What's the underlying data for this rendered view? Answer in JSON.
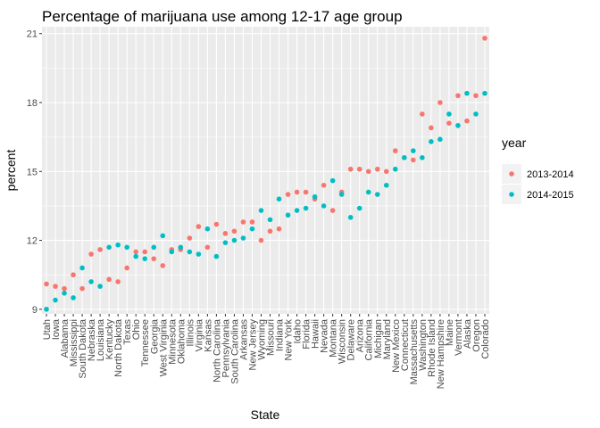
{
  "chart_data": {
    "type": "scatter",
    "title": "Percentage of marijuana use among 12-17 age group",
    "xlabel": "State",
    "ylabel": "percent",
    "ylim": [
      8.8,
      21.3
    ],
    "yticks": [
      9,
      12,
      15,
      18,
      21
    ],
    "grid": true,
    "legend": {
      "title": "year",
      "position": "right"
    },
    "categories": [
      "Utah",
      "Iowa",
      "Alabama",
      "Mississippi",
      "South Dakota",
      "Nebraska",
      "Louisiana",
      "Kentucky",
      "North Dakota",
      "Texas",
      "Ohio",
      "Tennessee",
      "Georgia",
      "West Virginia",
      "Minnesota",
      "Oklahoma",
      "Illinois",
      "Virginia",
      "Kansas",
      "North Carolina",
      "Pennsylvania",
      "South Carolina",
      "Arkansas",
      "New Jersey",
      "Wyoming",
      "Missouri",
      "Indiana",
      "New York",
      "Idaho",
      "Florida",
      "Hawaii",
      "Nevada",
      "Montana",
      "Wisconsin",
      "Delaware",
      "Arizona",
      "California",
      "Michigan",
      "Maryland",
      "New Mexico",
      "Connecticut",
      "Massachusetts",
      "Washington",
      "Rhode Island",
      "New Hampshire",
      "Maine",
      "Vermont",
      "Alaska",
      "Oregon",
      "Colorado"
    ],
    "series": [
      {
        "name": "2013-2014",
        "color": "#F8766D",
        "values": [
          10.1,
          10.0,
          9.9,
          10.5,
          9.9,
          11.4,
          11.6,
          10.3,
          10.2,
          10.8,
          11.5,
          11.5,
          11.2,
          10.9,
          11.6,
          11.6,
          12.1,
          12.6,
          11.7,
          12.7,
          12.3,
          12.4,
          12.8,
          12.8,
          12.0,
          12.4,
          12.5,
          14.0,
          14.1,
          14.1,
          13.8,
          14.4,
          13.3,
          14.1,
          15.1,
          15.1,
          15.0,
          15.1,
          15.0,
          15.9,
          15.6,
          15.5,
          17.5,
          16.9,
          18.0,
          17.1,
          18.3,
          17.2,
          18.3,
          20.8
        ]
      },
      {
        "name": "2014-2015",
        "color": "#00BFC4",
        "values": [
          9.0,
          9.4,
          9.7,
          9.5,
          10.8,
          10.2,
          10.0,
          11.7,
          11.8,
          11.7,
          11.3,
          11.2,
          11.7,
          12.2,
          11.5,
          11.7,
          11.5,
          11.4,
          12.5,
          11.3,
          11.9,
          12.0,
          12.1,
          12.5,
          13.3,
          12.9,
          13.8,
          13.1,
          13.3,
          13.4,
          13.9,
          13.5,
          14.6,
          14.0,
          13.0,
          13.4,
          14.1,
          14.0,
          14.4,
          15.1,
          15.6,
          15.9,
          15.6,
          16.3,
          16.4,
          17.5,
          17.0,
          18.4,
          17.5,
          18.4
        ]
      }
    ]
  }
}
